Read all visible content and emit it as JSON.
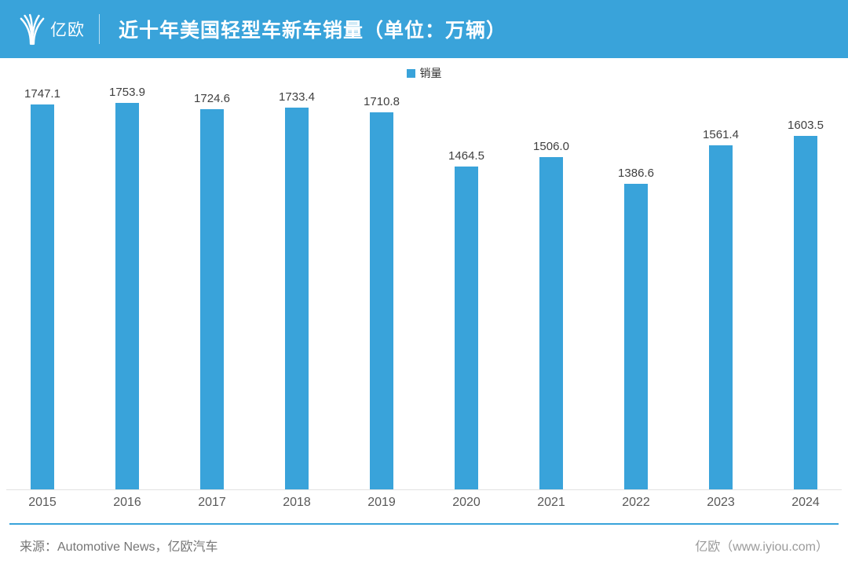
{
  "header": {
    "logo_text": "亿欧",
    "title": "近十年美国轻型车新车销量（单位：万辆）"
  },
  "legend": {
    "label": "销量"
  },
  "chart_data": {
    "type": "bar",
    "title": "近十年美国轻型车新车销量（单位：万辆）",
    "series_name": "销量",
    "unit": "万辆",
    "categories": [
      "2015",
      "2016",
      "2017",
      "2018",
      "2019",
      "2020",
      "2021",
      "2022",
      "2023",
      "2024"
    ],
    "values": [
      1747.1,
      1753.9,
      1724.6,
      1733.4,
      1710.8,
      1464.5,
      1506.0,
      1386.6,
      1561.4,
      1603.5
    ],
    "xlabel": "",
    "ylabel": "",
    "ylim": [
      0,
      1800
    ],
    "grid": false,
    "legend_position": "top-center",
    "value_labels": "above-bars"
  },
  "footer": {
    "source": "来源：Automotive News，亿欧汽车",
    "brand": "亿欧（www.iyiou.com）"
  },
  "colors": {
    "accent": "#39A3DA",
    "header_bg": "#39A3DA",
    "bar": "#39A3DA",
    "value_label": "#3f3f3f",
    "axis_label": "#585858",
    "axis_line": "#e3e3e3"
  }
}
